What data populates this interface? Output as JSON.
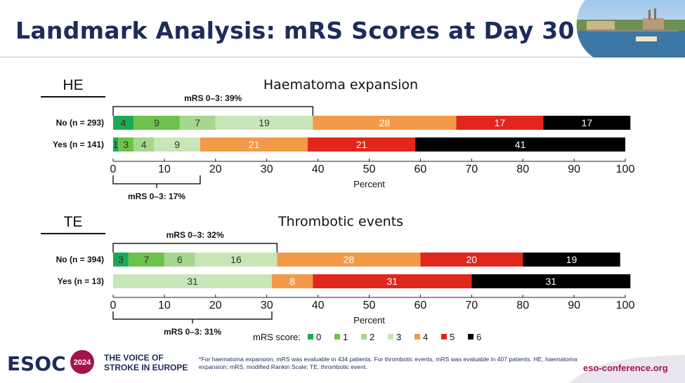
{
  "page": {
    "title": "Landmark Analysis: mRS Scores at Day 30",
    "tagline": "THE VOICE OF STROKE IN EUROPE",
    "footnote": "*For haematoma expansion, mRS was evaluable in 434 patients. For thrombotic events, mRS was evaluable in 407 patients. HE, haematoma expansion; mRS, modified Rankin Scale; TE, thrombotic event.",
    "url": "eso-conference.org",
    "logo_text": "ESOC",
    "logo_year": "2024"
  },
  "colors": {
    "title": "#1c2c5b",
    "accent": "#a5134b",
    "mrs": [
      "#1aaa55",
      "#6cc24a",
      "#a5d78e",
      "#c8e6b8",
      "#f39a48",
      "#e1261c",
      "#000000"
    ]
  },
  "chart_data": [
    {
      "type": "bar",
      "orientation": "horizontal",
      "stacked": true,
      "panel_label": "HE",
      "title": "Haematoma expansion",
      "xlabel": "Percent",
      "xlim": [
        0,
        100
      ],
      "xticks": [
        0,
        10,
        20,
        30,
        40,
        50,
        60,
        70,
        80,
        90,
        100
      ],
      "categories": [
        "No (n = 293)",
        "Yes (n = 141)"
      ],
      "series": [
        {
          "name": "0",
          "values": [
            4,
            1
          ]
        },
        {
          "name": "1",
          "values": [
            9,
            3
          ]
        },
        {
          "name": "2",
          "values": [
            7,
            4
          ]
        },
        {
          "name": "3",
          "values": [
            19,
            9
          ]
        },
        {
          "name": "4",
          "values": [
            28,
            21
          ]
        },
        {
          "name": "5",
          "values": [
            17,
            21
          ]
        },
        {
          "name": "6",
          "values": [
            17,
            41
          ]
        }
      ],
      "annotations": [
        {
          "text": "mRS 0–3: 39%",
          "row": 0,
          "value": 39,
          "placement": "above"
        },
        {
          "text": "mRS 0–3: 17%",
          "row": 1,
          "value": 17,
          "placement": "below"
        }
      ]
    },
    {
      "type": "bar",
      "orientation": "horizontal",
      "stacked": true,
      "panel_label": "TE",
      "title": "Thrombotic events",
      "xlabel": "Percent",
      "xlim": [
        0,
        100
      ],
      "xticks": [
        0,
        10,
        20,
        30,
        40,
        50,
        60,
        70,
        80,
        90,
        100
      ],
      "categories": [
        "No (n = 394)",
        "Yes (n = 13)"
      ],
      "series": [
        {
          "name": "0",
          "values": [
            3,
            0
          ]
        },
        {
          "name": "1",
          "values": [
            7,
            0
          ]
        },
        {
          "name": "2",
          "values": [
            6,
            0
          ]
        },
        {
          "name": "3",
          "values": [
            16,
            31
          ]
        },
        {
          "name": "4",
          "values": [
            28,
            8
          ]
        },
        {
          "name": "5",
          "values": [
            20,
            31
          ]
        },
        {
          "name": "6",
          "values": [
            19,
            31
          ]
        }
      ],
      "annotations": [
        {
          "text": "mRS 0–3: 32%",
          "row": 0,
          "value": 32,
          "placement": "above"
        },
        {
          "text": "mRS 0–3: 31%",
          "row": 1,
          "value": 31,
          "placement": "below"
        }
      ],
      "legend": {
        "title": "mRS score:",
        "labels": [
          "0",
          "1",
          "2",
          "3",
          "4",
          "5",
          "6"
        ],
        "placement": "bottom"
      }
    }
  ]
}
